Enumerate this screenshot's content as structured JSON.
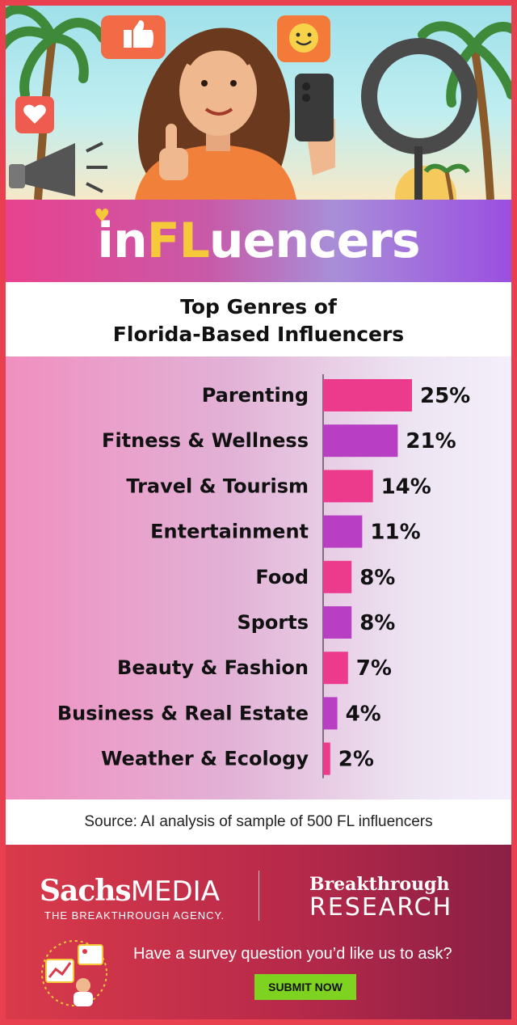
{
  "brand": {
    "prefix": "in",
    "highlight": "FL",
    "suffix": "uencers"
  },
  "chart_data": {
    "type": "bar",
    "orientation": "horizontal",
    "title": "Top Genres of\nFlorida-Based Influencers",
    "categories": [
      "Parenting",
      "Fitness & Wellness",
      "Travel & Tourism",
      "Entertainment",
      "Food",
      "Sports",
      "Beauty & Fashion",
      "Business & Real Estate",
      "Weather & Ecology"
    ],
    "values": [
      25,
      21,
      14,
      11,
      8,
      8,
      7,
      4,
      2
    ],
    "value_labels": [
      "25%",
      "21%",
      "14%",
      "11%",
      "8%",
      "8%",
      "7%",
      "4%",
      "2%"
    ],
    "unit": "%",
    "bar_colors": [
      "#ec3b8c",
      "#b83fc4"
    ],
    "grid": false,
    "legend": "none"
  },
  "source": "Source: AI analysis of sample of 500 FL influencers",
  "footer": {
    "sachs_bold": "Sachs",
    "sachs_media": "MEDIA",
    "sachs_tagline": "THE BREAKTHROUGH AGENCY.",
    "bt_line1": "Breakthrough",
    "bt_line2": "RESEARCH",
    "question": "Have a survey question you’d like us to ask?",
    "submit_label": "SUBMIT NOW"
  },
  "colors": {
    "frame": "#e8404f",
    "accent_yellow": "#f6c93a",
    "button": "#7ed321"
  }
}
